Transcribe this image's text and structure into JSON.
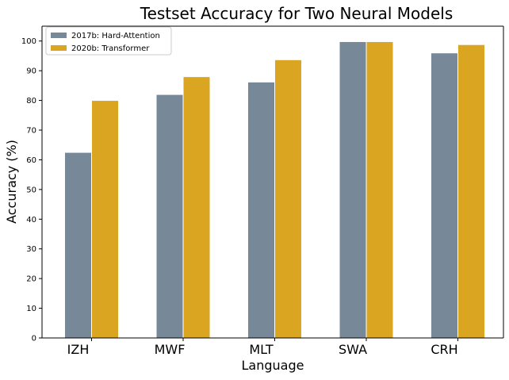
{
  "chart_data": {
    "type": "bar",
    "title": "Testset Accuracy for Two Neural Models",
    "xlabel": "Language",
    "ylabel": "Accuracy (%)",
    "categories": [
      "IZH",
      "MWF",
      "MLT",
      "SWA",
      "CRH"
    ],
    "series": [
      {
        "name": "2017b: Hard-Attention",
        "color": "#778899",
        "values": [
          62.5,
          82,
          86.2,
          99.8,
          96
        ]
      },
      {
        "name": "2020b: Transformer",
        "color": "#DAA520",
        "values": [
          80,
          88,
          93.7,
          99.8,
          98.8
        ]
      }
    ],
    "ylim": [
      0,
      105
    ],
    "yticks": [
      0,
      10,
      20,
      30,
      40,
      50,
      60,
      70,
      80,
      90,
      100
    ],
    "grid": false,
    "legend_position": "top-left"
  }
}
